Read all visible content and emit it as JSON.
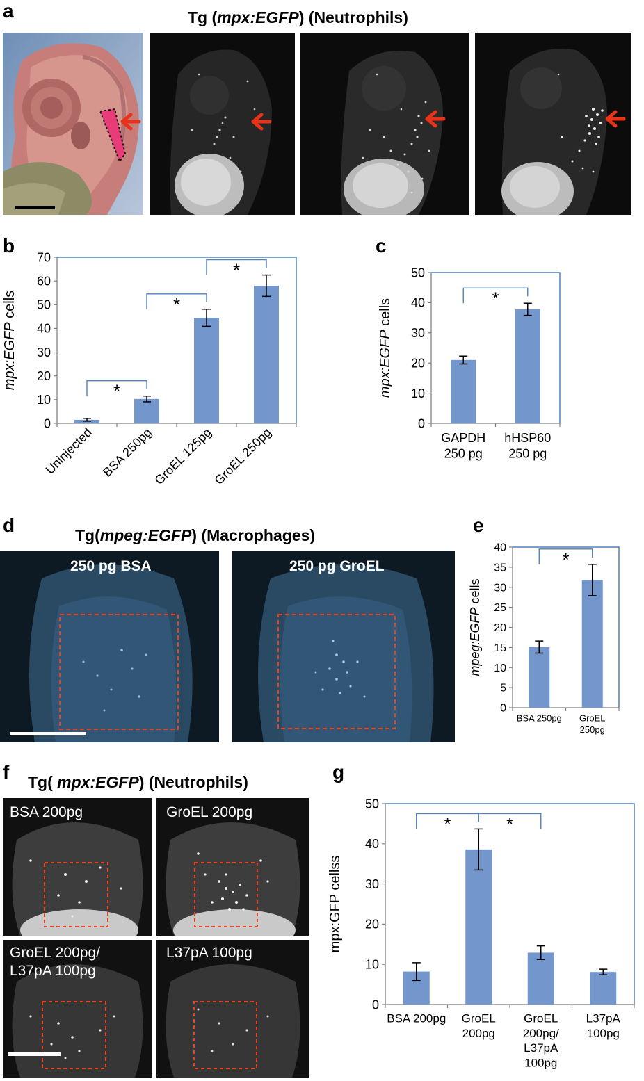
{
  "panel_a": {
    "label": "a",
    "title_prefix": "Tg (",
    "title_italic": "mpx:EGFP",
    "title_suffix": ") (Neutrophils)"
  },
  "panel_d": {
    "label": "d",
    "title_prefix": "Tg(",
    "title_italic": "mpeg:EGFP",
    "title_suffix": ") (Macrophages)",
    "images": [
      {
        "label": "250 pg BSA"
      },
      {
        "label": "250 pg GroEL"
      }
    ]
  },
  "panel_f": {
    "label": "f",
    "title_prefix": "Tg( ",
    "title_italic": "mpx:EGFP",
    "title_suffix": ") (Neutrophils)",
    "images": [
      {
        "label": "BSA 200pg"
      },
      {
        "label": "GroEL 200pg"
      },
      {
        "label": "GroEL 200pg/\nL37pA 100pg"
      },
      {
        "label": "L37pA 100pg"
      }
    ]
  },
  "colors": {
    "bar": "#7397cd",
    "frame": "#4f81bd",
    "arrow": "#e8321a",
    "dashed_box": "#e8421e"
  },
  "chart_data": [
    {
      "panel": "b",
      "type": "bar",
      "ylabel_italic": "mpx:EGFP",
      "ylabel_suffix": " cells",
      "categories": [
        "Uninjected",
        "BSA 250pg",
        "GroEL 125pg",
        "GroEL 250pg"
      ],
      "values": [
        1.5,
        10.3,
        44.5,
        58
      ],
      "errors": [
        0.6,
        1.2,
        3.6,
        4.5
      ],
      "ylim": [
        0,
        70
      ],
      "yticks": [
        0,
        10,
        20,
        30,
        40,
        50,
        60,
        70
      ],
      "significance": [
        {
          "from": 0,
          "to": 1,
          "label": "*"
        },
        {
          "from": 1,
          "to": 2,
          "label": "*"
        },
        {
          "from": 2,
          "to": 3,
          "label": "*"
        }
      ]
    },
    {
      "panel": "c",
      "type": "bar",
      "ylabel_italic": "mpx:EGFP",
      "ylabel_suffix": " cells",
      "categories": [
        [
          "GAPDH",
          "250 pg"
        ],
        [
          "hHSP60",
          "250 pg"
        ]
      ],
      "values": [
        21,
        37.8
      ],
      "errors": [
        1.3,
        2
      ],
      "ylim": [
        0,
        50
      ],
      "yticks": [
        0,
        10,
        20,
        30,
        40,
        50
      ],
      "significance": [
        {
          "from": 0,
          "to": 1,
          "label": "*"
        }
      ]
    },
    {
      "panel": "e",
      "type": "bar",
      "ylabel_italic": "mpeg:EGFP",
      "ylabel_suffix": " cells",
      "categories": [
        [
          "BSA 250pg"
        ],
        [
          "GroEL",
          "250pg"
        ]
      ],
      "values": [
        15.1,
        31.8
      ],
      "errors": [
        1.5,
        3.9
      ],
      "ylim": [
        0,
        40
      ],
      "yticks": [
        0,
        5,
        10,
        15,
        20,
        25,
        30,
        35,
        40
      ],
      "significance": [
        {
          "from": 0,
          "to": 1,
          "label": "*"
        }
      ]
    },
    {
      "panel": "g",
      "type": "bar",
      "ylabel": "mpx:GFP cellss",
      "categories": [
        [
          "BSA 200pg"
        ],
        [
          "GroEL",
          "200pg"
        ],
        [
          "GroEL",
          "200pg/",
          "L37pA",
          "100pg"
        ],
        [
          "L37pA",
          "100pg"
        ]
      ],
      "values": [
        8.2,
        38.6,
        12.9,
        8.1
      ],
      "errors": [
        2.2,
        5.1,
        1.7,
        0.7
      ],
      "ylim": [
        0,
        50
      ],
      "yticks": [
        0,
        10,
        20,
        30,
        40,
        50
      ],
      "significance": [
        {
          "from": 0,
          "to": 1,
          "label": "*"
        },
        {
          "from": 1,
          "to": 2,
          "label": "*"
        }
      ]
    }
  ]
}
